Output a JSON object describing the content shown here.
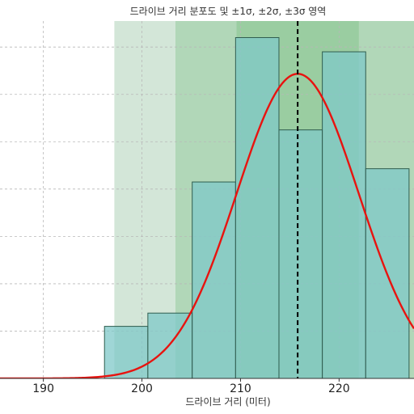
{
  "chart_data": {
    "type": "bar",
    "title": "드라이브 거리 분포도 및 ±1σ, ±2σ, ±3σ 영역",
    "xlabel": "드라이브 거리 (미터)",
    "ylabel": "",
    "xlim": [
      185.6,
      227.6
    ],
    "ylim": [
      0,
      0.0755
    ],
    "x_ticks": [
      190,
      200,
      210,
      220
    ],
    "grid": true,
    "histogram": {
      "bin_edges": [
        196.2,
        200.6,
        205.1,
        209.5,
        213.9,
        218.3,
        222.7,
        227.1
      ],
      "density": [
        0.011,
        0.0138,
        0.0415,
        0.072,
        0.0525,
        0.069,
        0.0443
      ],
      "color": "#7fc8c8"
    },
    "normal_curve": {
      "mean": 215.8,
      "std": 6.2,
      "color": "#e8130f"
    },
    "mean_line": {
      "x": 215.8,
      "color": "#000000"
    },
    "sigma_bands": [
      {
        "k": 3,
        "color": "#a8ceb2"
      },
      {
        "k": 2,
        "color": "#8fc897"
      },
      {
        "k": 1,
        "color": "#83c389"
      }
    ]
  }
}
